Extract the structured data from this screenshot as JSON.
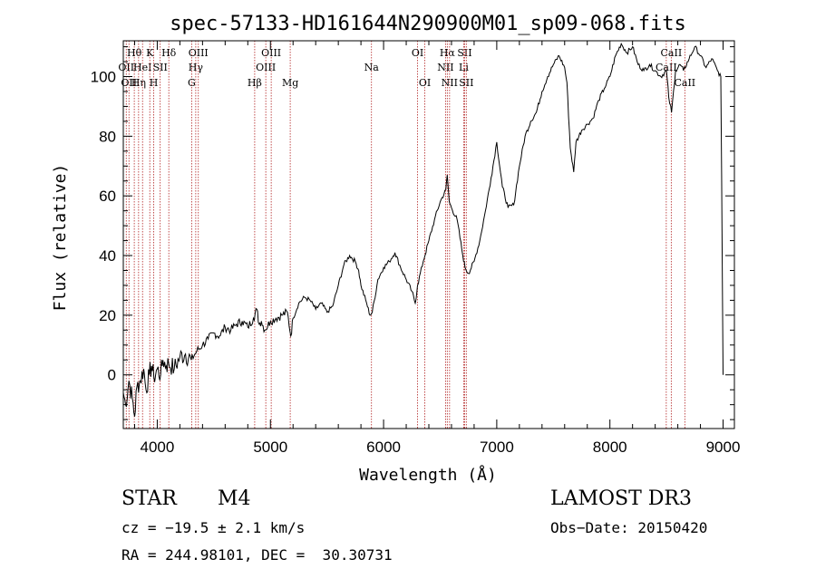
{
  "chart_data": {
    "type": "line",
    "title": "spec-57133-HD161644N290900M01_sp09-068.fits",
    "xlabel": "Wavelength (Å)",
    "ylabel": "Flux (relative)",
    "xlim": [
      3700,
      9100
    ],
    "ylim": [
      -18,
      112
    ],
    "xticks": [
      4000,
      5000,
      6000,
      7000,
      8000,
      9000
    ],
    "yticks": [
      0,
      20,
      40,
      60,
      80,
      100
    ],
    "series": [
      {
        "name": "flux",
        "x": [
          3700,
          3720,
          3750,
          3780,
          3800,
          3820,
          3850,
          3880,
          3900,
          3930,
          3950,
          3970,
          4000,
          4030,
          4050,
          4080,
          4100,
          4150,
          4200,
          4250,
          4300,
          4350,
          4400,
          4450,
          4500,
          4550,
          4600,
          4650,
          4700,
          4750,
          4800,
          4850,
          4880,
          4900,
          4920,
          4950,
          5000,
          5050,
          5100,
          5150,
          5180,
          5200,
          5250,
          5300,
          5350,
          5400,
          5450,
          5500,
          5550,
          5600,
          5650,
          5700,
          5750,
          5780,
          5800,
          5850,
          5880,
          5900,
          5950,
          6000,
          6050,
          6100,
          6150,
          6200,
          6250,
          6280,
          6300,
          6350,
          6400,
          6450,
          6500,
          6550,
          6563,
          6580,
          6600,
          6650,
          6700,
          6720,
          6750,
          6800,
          6850,
          6900,
          6950,
          7000,
          7050,
          7100,
          7150,
          7200,
          7250,
          7300,
          7350,
          7400,
          7450,
          7500,
          7550,
          7600,
          7620,
          7650,
          7680,
          7700,
          7750,
          7800,
          7850,
          7900,
          7950,
          8000,
          8050,
          8100,
          8150,
          8200,
          8250,
          8300,
          8350,
          8400,
          8450,
          8500,
          8520,
          8545,
          8580,
          8620,
          8650,
          8700,
          8750,
          8800,
          8850,
          8900,
          8950,
          8980,
          9000
        ],
        "y": [
          -6,
          -10,
          -2,
          -8,
          -14,
          -4,
          -2,
          2,
          -5,
          0,
          3,
          -1,
          2,
          0,
          5,
          3,
          4,
          2,
          6,
          7,
          5,
          8,
          10,
          12,
          14,
          13,
          16,
          15,
          17,
          18,
          16,
          19,
          22,
          17,
          18,
          15,
          18,
          19,
          20,
          21,
          13,
          19,
          24,
          26,
          25,
          22,
          24,
          21,
          23,
          30,
          37,
          40,
          38,
          35,
          30,
          24,
          20,
          21,
          32,
          36,
          38,
          41,
          36,
          32,
          28,
          24,
          30,
          38,
          45,
          52,
          58,
          62,
          67,
          58,
          56,
          52,
          40,
          36,
          34,
          38,
          45,
          55,
          66,
          78,
          63,
          56,
          57,
          70,
          80,
          85,
          88,
          95,
          100,
          104,
          107,
          103,
          98,
          76,
          68,
          78,
          82,
          84,
          86,
          92,
          96,
          100,
          107,
          111,
          108,
          110,
          104,
          102,
          104,
          102,
          100,
          102,
          93,
          88,
          102,
          104,
          102,
          106,
          110,
          107,
          103,
          106,
          102,
          100,
          0
        ]
      }
    ],
    "spectral_lines": [
      {
        "wl": 3726,
        "label": "OII",
        "row": 2
      },
      {
        "wl": 3750,
        "label": "OII",
        "row": 3
      },
      {
        "wl": 3797,
        "label": "Hθ",
        "row": 1
      },
      {
        "wl": 3835,
        "label": "Hη",
        "row": 3
      },
      {
        "wl": 3870,
        "label": "HeI",
        "row": 2
      },
      {
        "wl": 3934,
        "label": "K",
        "row": 1
      },
      {
        "wl": 3969,
        "label": "H",
        "row": 3
      },
      {
        "wl": 4026,
        "label": "SII",
        "row": 2
      },
      {
        "wl": 4102,
        "label": "Hδ",
        "row": 1
      },
      {
        "wl": 4304,
        "label": "G",
        "row": 3
      },
      {
        "wl": 4340,
        "label": "Hγ",
        "row": 2
      },
      {
        "wl": 4363,
        "label": "OIII",
        "row": 1
      },
      {
        "wl": 4861,
        "label": "Hβ",
        "row": 3
      },
      {
        "wl": 4959,
        "label": "OIII",
        "row": 2
      },
      {
        "wl": 5007,
        "label": "OIII",
        "row": 1
      },
      {
        "wl": 5175,
        "label": "Mg",
        "row": 3
      },
      {
        "wl": 5893,
        "label": "Na",
        "row": 2
      },
      {
        "wl": 6300,
        "label": "OI",
        "row": 1
      },
      {
        "wl": 6364,
        "label": "OI",
        "row": 3
      },
      {
        "wl": 6548,
        "label": "NII",
        "row": 2
      },
      {
        "wl": 6563,
        "label": "Hα",
        "row": 1
      },
      {
        "wl": 6583,
        "label": "NII",
        "row": 3
      },
      {
        "wl": 6708,
        "label": "Li",
        "row": 2
      },
      {
        "wl": 6716,
        "label": "SII",
        "row": 1
      },
      {
        "wl": 6731,
        "label": "SII",
        "row": 3
      },
      {
        "wl": 8498,
        "label": "CaII",
        "row": 2
      },
      {
        "wl": 8542,
        "label": "CaII",
        "row": 1
      },
      {
        "wl": 8662,
        "label": "CaII",
        "row": 3
      }
    ]
  },
  "info": {
    "object_class": "STAR",
    "subclass": "M4",
    "survey": "LAMOST DR3",
    "cz": "cz = −19.5 ± 2.1 km/s",
    "obs_date": "Obs−Date: 20150420",
    "coords": "RA = 244.98101, DEC =  30.30731"
  }
}
